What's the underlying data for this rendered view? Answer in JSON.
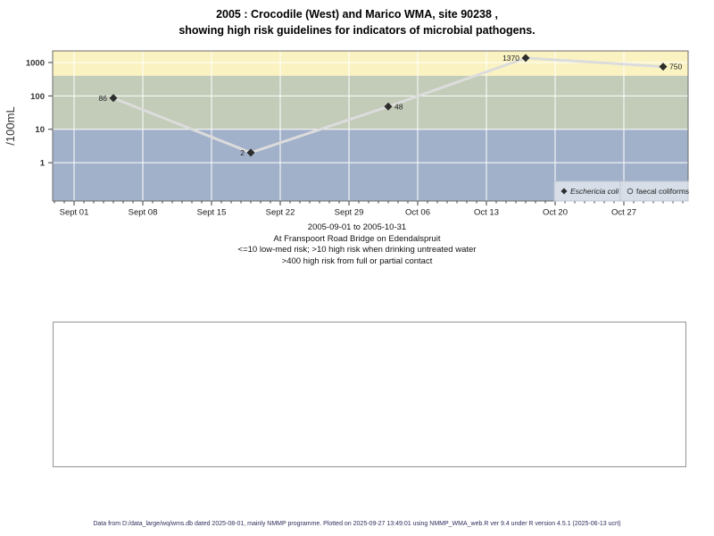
{
  "title": {
    "line1": "2005 : Crocodile (West) and Marico WMA, site 90238 ,",
    "line2": "showing high risk guidelines for indicators of microbial pathogens."
  },
  "chart_data": {
    "type": "line",
    "title": "2005 : Crocodile (West) and Marico WMA, site 90238 , showing high risk guidelines for indicators of microbial pathogens.",
    "ylabel": "/100mL",
    "y_scale": "log",
    "y_ticks": [
      1,
      10,
      100,
      1000
    ],
    "x_ticks": [
      {
        "day": 0,
        "label": "Sept 01"
      },
      {
        "day": 7,
        "label": "Sept 08"
      },
      {
        "day": 14,
        "label": "Sept 15"
      },
      {
        "day": 21,
        "label": "Sept 22"
      },
      {
        "day": 28,
        "label": "Sept 29"
      },
      {
        "day": 35,
        "label": "Oct 06"
      },
      {
        "day": 42,
        "label": "Oct 13"
      },
      {
        "day": 49,
        "label": "Oct 20"
      },
      {
        "day": 56,
        "label": "Oct 27"
      }
    ],
    "bands": [
      {
        "name": "high-risk-full-or-partial-contact",
        "from": 400,
        "to": null,
        "color": "#faf3c1"
      },
      {
        "name": "high-risk-drinking-untreated",
        "from": 10,
        "to": 400,
        "color": "#c2ccb8"
      },
      {
        "name": "low-med-risk",
        "from": null,
        "to": 10,
        "color": "#a2b1ca"
      }
    ],
    "series": [
      {
        "name": "Eschericia coli",
        "marker": "filled-diamond",
        "dates": [
          "2005-09-05",
          "2005-09-19",
          "2005-10-03",
          "2005-10-17",
          "2005-10-31"
        ],
        "x_days": [
          4,
          18,
          32,
          46,
          60
        ],
        "values": [
          86,
          2,
          48,
          1370,
          750
        ],
        "labels": [
          "86",
          "2",
          "48",
          "1370",
          "750"
        ],
        "label_sides": [
          "left",
          "left",
          "right",
          "left",
          "right"
        ]
      },
      {
        "name": "faecal coliforms",
        "marker": "open-circle",
        "dates": [],
        "x_days": [],
        "values": [],
        "labels": [],
        "label_sides": []
      }
    ],
    "legend": [
      {
        "marker": "filled-diamond",
        "label": "Eschericia coli",
        "italic": true
      },
      {
        "marker": "open-circle",
        "label": "faecal coliforms",
        "italic": false
      }
    ],
    "legend_position": "bottom-right",
    "colors": {
      "line": "#dcdcdc",
      "marker": "#2d2d2d",
      "gridline": "#ffffff",
      "plot_border": "#6b6b6b",
      "legend_bg": "#d7dee8",
      "legend_border": "#bcc5d1"
    }
  },
  "caption": {
    "line1": "2005-09-01 to 2005-10-31",
    "line2": "At Franspoort Road Bridge on Edendalspruit",
    "line3": "<=10 low-med risk; >10 high risk when drinking untreated water",
    "line4": ">400 high risk from full or partial contact"
  },
  "footer": "Data from D:/data_large/wq/wms.db dated 2025-08-01, mainly NMMP programme. Plotted on 2025-09-27 13:49:01 using NMMP_WMA_web.R ver 9.4 under R version 4.5.1 (2025-06-13 ucrt)"
}
